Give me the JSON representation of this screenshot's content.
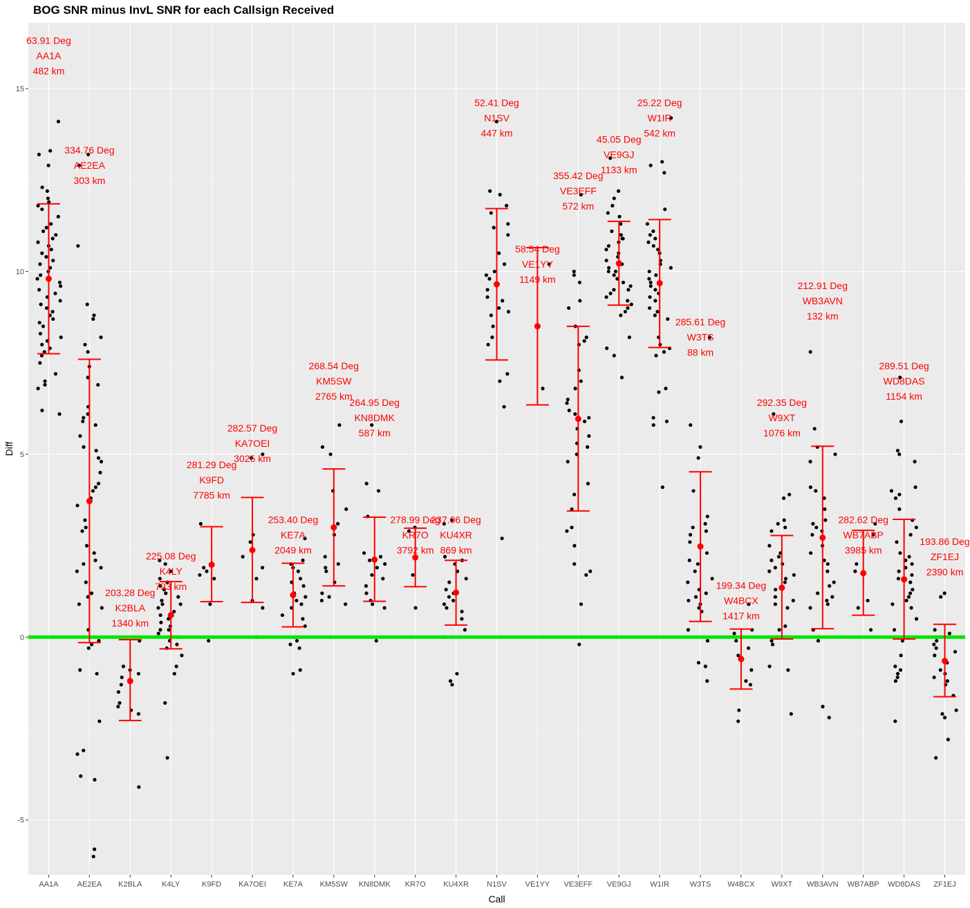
{
  "chart_data": {
    "type": "scatter",
    "title": "BOG SNR minus InvL SNR for each Callsign Received",
    "xlabel": "Call",
    "ylabel": "Diff",
    "ylim": [
      -6.5,
      16.8
    ],
    "y_ticks": [
      -5,
      0,
      5,
      10,
      15
    ],
    "grid": true,
    "legend": "none",
    "reference_line": {
      "y": 0,
      "color": "#00e600"
    },
    "colors": {
      "background": "#ebebeb",
      "grid_major": "#ffffff",
      "points": "#000000",
      "summary": "#ff0000",
      "annotation": "#ff0000"
    },
    "categories": [
      "AA1A",
      "AE2EA",
      "K2BLA",
      "K4LY",
      "K9FD",
      "KA7OEI",
      "KE7A",
      "KM5SW",
      "KN8DMK",
      "KR7O",
      "KU4XR",
      "N1SV",
      "VE1YY",
      "VE3EFF",
      "VE9GJ",
      "W1IR",
      "W3TS",
      "W4BCX",
      "W9XT",
      "WB3AVN",
      "WB7ABP",
      "WD8DAS",
      "ZF1EJ"
    ],
    "summary": [
      {
        "call": "AA1A",
        "mean": 9.8,
        "lower": 7.75,
        "upper": 11.85
      },
      {
        "call": "AE2EA",
        "mean": 3.72,
        "lower": -0.15,
        "upper": 7.6
      },
      {
        "call": "K2BLA",
        "mean": -1.2,
        "lower": -2.28,
        "upper": -0.07
      },
      {
        "call": "K4LY",
        "mean": 0.6,
        "lower": -0.32,
        "upper": 1.52
      },
      {
        "call": "K9FD",
        "mean": 1.98,
        "lower": 0.97,
        "upper": 3.02
      },
      {
        "call": "KA7OEI",
        "mean": 2.38,
        "lower": 0.95,
        "upper": 3.82
      },
      {
        "call": "KE7A",
        "mean": 1.15,
        "lower": 0.28,
        "upper": 2.02
      },
      {
        "call": "KM5SW",
        "mean": 3.0,
        "lower": 1.4,
        "upper": 4.6
      },
      {
        "call": "KN8DMK",
        "mean": 2.12,
        "lower": 0.98,
        "upper": 3.28
      },
      {
        "call": "KR7O",
        "mean": 2.18,
        "lower": 1.38,
        "upper": 2.98
      },
      {
        "call": "KU4XR",
        "mean": 1.22,
        "lower": 0.33,
        "upper": 2.1
      },
      {
        "call": "N1SV",
        "mean": 9.65,
        "lower": 7.58,
        "upper": 11.72
      },
      {
        "call": "VE1YY",
        "mean": 8.5,
        "lower": 6.35,
        "upper": 10.65
      },
      {
        "call": "VE3EFF",
        "mean": 5.97,
        "lower": 3.45,
        "upper": 8.5
      },
      {
        "call": "VE9GJ",
        "mean": 10.22,
        "lower": 9.08,
        "upper": 11.37
      },
      {
        "call": "W1IR",
        "mean": 9.68,
        "lower": 7.92,
        "upper": 11.42
      },
      {
        "call": "W3TS",
        "mean": 2.48,
        "lower": 0.43,
        "upper": 4.52
      },
      {
        "call": "W4BCX",
        "mean": -0.6,
        "lower": -1.42,
        "upper": 0.22
      },
      {
        "call": "W9XT",
        "mean": 1.35,
        "lower": -0.05,
        "upper": 2.78
      },
      {
        "call": "WB3AVN",
        "mean": 2.72,
        "lower": 0.23,
        "upper": 5.22
      },
      {
        "call": "WB7ABP",
        "mean": 1.75,
        "lower": 0.6,
        "upper": 2.92
      },
      {
        "call": "WD8DAS",
        "mean": 1.58,
        "lower": -0.05,
        "upper": 3.22
      },
      {
        "call": "ZF1EJ",
        "mean": -0.65,
        "lower": -1.63,
        "upper": 0.35
      }
    ],
    "points": {
      "AA1A": [
        12.9,
        13.3,
        13.2,
        12.3,
        12.2,
        11.9,
        11.8,
        11.5,
        11.3,
        11.2,
        11.1,
        11.0,
        10.9,
        10.8,
        10.7,
        10.5,
        10.3,
        10.2,
        10.1,
        10.0,
        9.9,
        9.8,
        9.7,
        9.6,
        9.5,
        9.3,
        9.2,
        9.1,
        9.0,
        8.8,
        8.7,
        8.5,
        8.3,
        8.2,
        8.1,
        8.0,
        7.9,
        7.8,
        7.5,
        7.2,
        7.0,
        6.9,
        6.8,
        6.1,
        6.2,
        14.1,
        12.0,
        11.7,
        10.6,
        10.4,
        9.4,
        8.9,
        8.6,
        7.7
      ],
      "AE2EA": [
        13.2,
        12.9,
        10.7,
        9.1,
        8.8,
        8.7,
        8.2,
        8.0,
        7.8,
        7.4,
        7.1,
        6.9,
        6.3,
        6.1,
        6.0,
        5.9,
        5.8,
        5.5,
        5.2,
        5.1,
        4.9,
        4.8,
        4.5,
        4.2,
        4.1,
        4.0,
        3.8,
        3.6,
        3.2,
        3.0,
        2.9,
        2.5,
        2.3,
        2.1,
        2.0,
        1.9,
        1.8,
        1.5,
        1.2,
        1.1,
        0.9,
        0.8,
        0.2,
        -0.1,
        -0.2,
        -0.3,
        -0.9,
        -1.0,
        -2.3,
        -3.1,
        -3.2,
        -3.8,
        -3.9,
        -5.8,
        -6.0
      ],
      "K2BLA": [
        -0.1,
        -0.8,
        -1.0,
        -1.1,
        -1.5,
        -1.8,
        -1.9,
        -2.0,
        -2.1,
        -4.1,
        -1.3,
        -0.9
      ],
      "K4LY": [
        2.1,
        2.0,
        1.8,
        1.6,
        1.5,
        1.3,
        1.2,
        1.1,
        1.0,
        0.9,
        0.8,
        0.7,
        0.6,
        0.5,
        0.4,
        0.3,
        0.2,
        0.1,
        0.0,
        -0.1,
        -0.2,
        -0.3,
        -0.5,
        -0.8,
        -1.0,
        -1.8,
        -3.3,
        1.4,
        0.9,
        0.2
      ],
      "K9FD": [
        3.1,
        1.9,
        1.8,
        1.7,
        1.6,
        0.9,
        -0.1,
        2.0
      ],
      "KA7OEI": [
        5.0,
        2.8,
        2.6,
        2.2,
        1.9,
        1.6,
        1.0,
        0.8,
        0.0,
        4.9
      ],
      "KE7A": [
        2.7,
        2.1,
        2.0,
        1.9,
        1.8,
        1.6,
        1.4,
        1.2,
        1.1,
        1.0,
        0.9,
        0.8,
        0.6,
        0.3,
        0.0,
        -0.1,
        -0.2,
        -0.3,
        -0.9,
        -1.0,
        1.5,
        0.5
      ],
      "KM5SW": [
        5.8,
        5.2,
        5.0,
        4.0,
        3.5,
        3.1,
        2.2,
        2.0,
        1.9,
        1.8,
        1.5,
        1.1,
        1.0,
        0.9,
        2.8,
        1.2
      ],
      "KN8DMK": [
        5.8,
        4.2,
        4.0,
        3.3,
        2.2,
        2.1,
        2.0,
        1.9,
        1.7,
        1.6,
        1.2,
        1.0,
        0.9,
        0.8,
        -0.1,
        2.3,
        1.4
      ],
      "KR7O": [
        3.0,
        2.9,
        1.7,
        0.8
      ],
      "KU4XR": [
        3.2,
        3.1,
        2.2,
        2.1,
        2.0,
        1.8,
        1.6,
        1.3,
        1.2,
        1.1,
        1.0,
        0.9,
        0.8,
        0.5,
        0.2,
        0.0,
        -1.0,
        -1.2,
        -1.3,
        1.5,
        0.7
      ],
      "N1SV": [
        14.1,
        12.2,
        12.1,
        11.8,
        11.3,
        11.2,
        11.0,
        10.2,
        10.0,
        9.9,
        9.8,
        9.5,
        9.2,
        9.0,
        8.9,
        8.8,
        8.5,
        8.2,
        8.0,
        7.2,
        7.0,
        6.3,
        2.7,
        11.6,
        10.5,
        9.3
      ],
      "VE1YY": [
        6.8,
        10.2
      ],
      "VE3EFF": [
        12.1,
        10.0,
        9.9,
        9.7,
        9.2,
        9.0,
        8.5,
        8.2,
        8.1,
        8.0,
        7.3,
        7.0,
        6.8,
        6.5,
        6.2,
        6.1,
        6.0,
        5.9,
        5.5,
        5.3,
        5.2,
        5.0,
        4.8,
        4.2,
        3.9,
        3.5,
        3.0,
        2.9,
        2.5,
        2.0,
        1.8,
        1.7,
        0.9,
        -0.2,
        6.4,
        5.7
      ],
      "VE9GJ": [
        13.1,
        12.2,
        12.0,
        11.8,
        11.5,
        11.3,
        11.1,
        11.0,
        10.9,
        10.8,
        10.7,
        10.6,
        10.5,
        10.4,
        10.3,
        10.2,
        10.1,
        10.0,
        9.9,
        9.8,
        9.7,
        9.6,
        9.5,
        9.4,
        9.3,
        9.2,
        9.1,
        9.0,
        8.9,
        8.8,
        8.2,
        7.9,
        7.7,
        7.1,
        11.6,
        10.9,
        10.0,
        9.5
      ],
      "W1IR": [
        14.2,
        13.0,
        12.9,
        12.7,
        11.7,
        11.3,
        11.1,
        11.0,
        10.9,
        10.8,
        10.7,
        10.5,
        10.3,
        10.2,
        10.1,
        10.0,
        9.9,
        9.8,
        9.7,
        9.6,
        9.5,
        9.3,
        9.2,
        9.0,
        8.9,
        8.8,
        8.7,
        8.2,
        8.0,
        7.9,
        7.8,
        7.7,
        6.8,
        6.7,
        6.0,
        5.9,
        5.8,
        4.1,
        10.6,
        9.4
      ],
      "W3TS": [
        8.2,
        5.8,
        5.2,
        4.9,
        4.0,
        3.3,
        3.1,
        3.0,
        2.9,
        2.8,
        2.5,
        2.3,
        2.1,
        2.0,
        1.8,
        1.5,
        1.3,
        1.2,
        1.1,
        1.0,
        0.9,
        0.8,
        0.7,
        0.2,
        -0.1,
        -0.7,
        -0.8,
        -1.2,
        2.6,
        1.6
      ],
      "W4BCX": [
        0.9,
        0.2,
        0.1,
        -0.1,
        -0.5,
        -0.9,
        -1.2,
        -1.3,
        -2.0,
        -2.3,
        -0.3
      ],
      "W9XT": [
        6.1,
        3.9,
        3.8,
        3.2,
        3.1,
        3.0,
        2.9,
        2.3,
        2.2,
        2.1,
        2.0,
        1.9,
        1.8,
        1.7,
        1.5,
        1.3,
        1.1,
        1.0,
        0.9,
        0.8,
        0.3,
        0.2,
        0.0,
        -0.1,
        -0.2,
        -0.8,
        -0.9,
        -2.1,
        1.6,
        2.5
      ],
      "WB3AVN": [
        7.8,
        5.7,
        5.2,
        5.0,
        4.8,
        4.1,
        4.0,
        3.8,
        3.2,
        3.1,
        3.0,
        2.9,
        2.8,
        2.5,
        2.3,
        2.1,
        2.0,
        1.8,
        1.5,
        1.2,
        1.1,
        1.0,
        0.9,
        0.8,
        0.2,
        -0.1,
        -1.9,
        -2.2,
        3.5,
        1.4
      ],
      "WB7ABP": [
        3.1,
        2.8,
        2.0,
        1.8,
        1.0,
        0.8,
        0.2
      ],
      "WD8DAS": [
        7.1,
        5.9,
        5.1,
        5.0,
        4.8,
        4.1,
        4.0,
        3.9,
        3.5,
        3.2,
        3.0,
        2.8,
        2.6,
        2.3,
        2.2,
        2.1,
        2.0,
        1.9,
        1.8,
        1.7,
        1.5,
        1.3,
        1.2,
        1.1,
        1.0,
        0.9,
        0.8,
        0.5,
        0.2,
        0.0,
        -0.1,
        -0.5,
        -0.8,
        -0.9,
        -1.0,
        -1.1,
        -1.2,
        -2.3,
        3.8,
        1.6
      ],
      "ZF1EJ": [
        1.2,
        1.1,
        0.2,
        0.1,
        -0.1,
        -0.2,
        -0.3,
        -0.5,
        -0.7,
        -0.9,
        -1.0,
        -1.1,
        -1.2,
        -1.6,
        -2.0,
        -2.1,
        -2.2,
        -2.8,
        -3.3,
        -0.4,
        -1.3
      ]
    },
    "annotations": [
      {
        "call": "AA1A",
        "y": 15.9,
        "lines": [
          "63.91 Deg",
          "AA1A",
          "482 km"
        ]
      },
      {
        "call": "AE2EA",
        "y": 12.9,
        "lines": [
          "334.76 Deg",
          "AE2EA",
          "303 km"
        ]
      },
      {
        "call": "K2BLA",
        "y": 0.8,
        "lines": [
          "203.28 Deg",
          "K2BLA",
          "1340 km"
        ]
      },
      {
        "call": "K4LY",
        "y": 1.8,
        "lines": [
          "225.08 Deg",
          "K4LY",
          "793 km"
        ]
      },
      {
        "call": "K9FD",
        "y": 4.3,
        "lines": [
          "281.29 Deg",
          "K9FD",
          "7785 km"
        ]
      },
      {
        "call": "KA7OEI",
        "y": 5.3,
        "lines": [
          "282.57 Deg",
          "KA7OEI",
          "3025 km"
        ]
      },
      {
        "call": "KE7A",
        "y": 2.8,
        "lines": [
          "253.40 Deg",
          "KE7A",
          "2049 km"
        ]
      },
      {
        "call": "KM5SW",
        "y": 7.0,
        "lines": [
          "268.54 Deg",
          "KM5SW",
          "2765 km"
        ]
      },
      {
        "call": "KN8DMK",
        "y": 6.0,
        "lines": [
          "264.95 Deg",
          "KN8DMK",
          "587 km"
        ]
      },
      {
        "call": "KR7O",
        "y": 2.8,
        "lines": [
          "278.99 Deg",
          "KR7O",
          "3792 km"
        ]
      },
      {
        "call": "KU4XR",
        "y": 2.8,
        "lines": [
          "237.06 Deg",
          "KU4XR",
          "869 km"
        ]
      },
      {
        "call": "N1SV",
        "y": 14.2,
        "lines": [
          "52.41 Deg",
          "N1SV",
          "447 km"
        ]
      },
      {
        "call": "VE1YY",
        "y": 10.2,
        "lines": [
          "58.54 Deg",
          "VE1YY",
          "1149 km"
        ]
      },
      {
        "call": "VE3EFF",
        "y": 12.2,
        "lines": [
          "355.42 Deg",
          "VE3EFF",
          "572 km"
        ]
      },
      {
        "call": "VE9GJ",
        "y": 13.2,
        "lines": [
          "45.05 Deg",
          "VE9GJ",
          "1133 km"
        ]
      },
      {
        "call": "W1IR",
        "y": 14.2,
        "lines": [
          "25.22 Deg",
          "W1IR",
          "542 km"
        ]
      },
      {
        "call": "W3TS",
        "y": 8.2,
        "lines": [
          "285.61 Deg",
          "W3TS",
          "88 km"
        ]
      },
      {
        "call": "W4BCX",
        "y": 1.0,
        "lines": [
          "199.34 Deg",
          "W4BCX",
          "1417 km"
        ]
      },
      {
        "call": "W9XT",
        "y": 6.0,
        "lines": [
          "292.35 Deg",
          "W9XT",
          "1076 km"
        ]
      },
      {
        "call": "WB3AVN",
        "y": 9.2,
        "lines": [
          "212.91 Deg",
          "WB3AVN",
          "132 km"
        ]
      },
      {
        "call": "WB7ABP",
        "y": 2.8,
        "lines": [
          "282.62 Deg",
          "WB7ABP",
          "3985 km"
        ]
      },
      {
        "call": "WD8DAS",
        "y": 7.0,
        "lines": [
          "289.51 Deg",
          "WD8DAS",
          "1154 km"
        ]
      },
      {
        "call": "ZF1EJ",
        "y": 2.2,
        "lines": [
          "193.86 Deg",
          "ZF1EJ",
          "2390 km"
        ]
      }
    ]
  }
}
